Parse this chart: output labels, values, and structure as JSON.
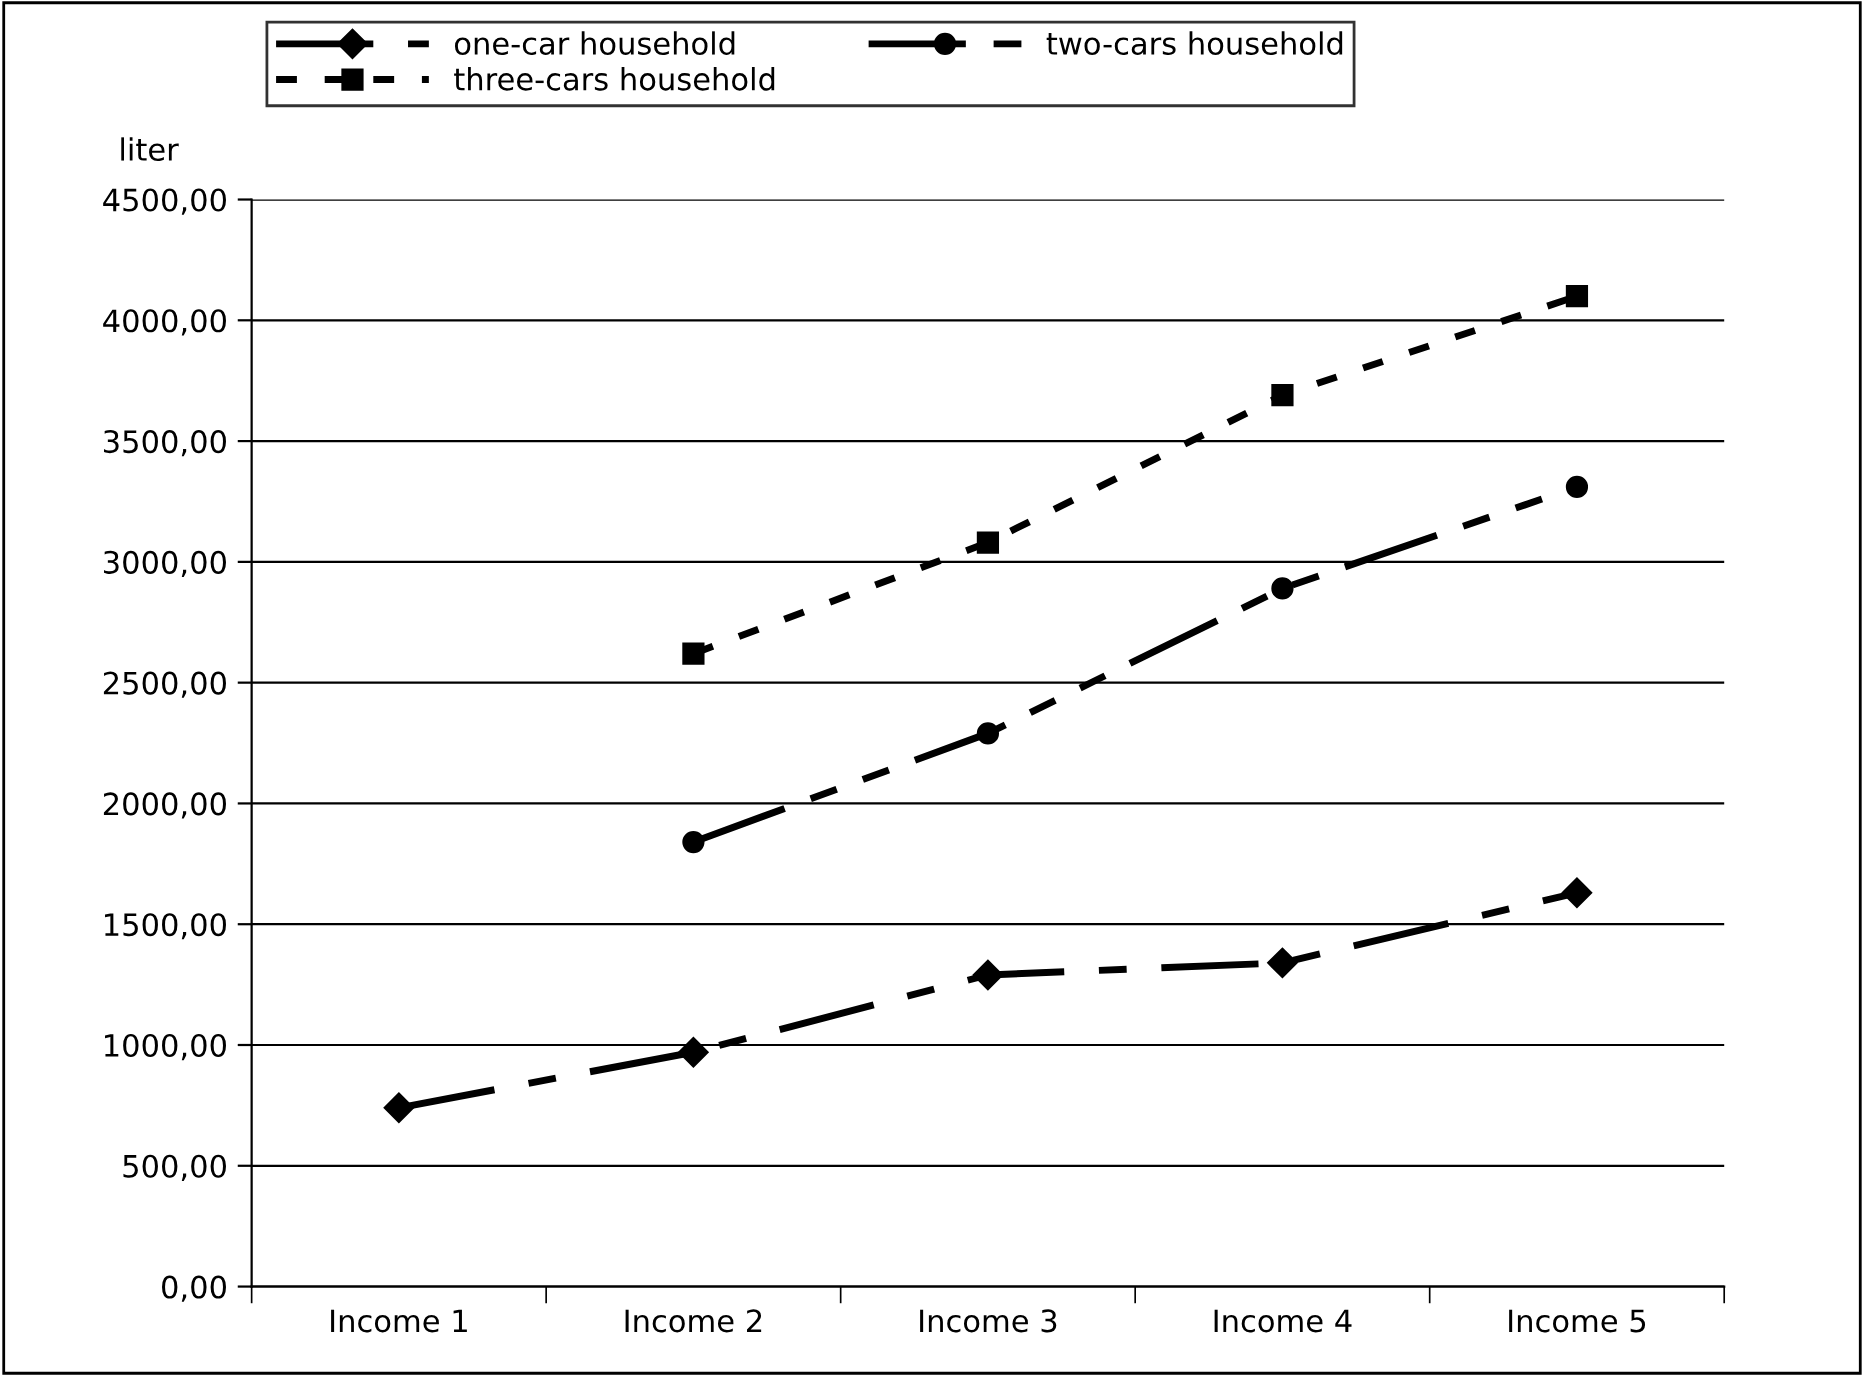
{
  "chart_data": {
    "type": "line",
    "ylabel": "liter",
    "categories": [
      "Income 1",
      "Income 2",
      "Income 3",
      "Income 4",
      "Income 5"
    ],
    "series": [
      {
        "name": "one-car household",
        "color": "#000000",
        "marker": "diamond",
        "line_style": "dashdot",
        "values": [
          740,
          970,
          1290,
          1340,
          1630
        ]
      },
      {
        "name": "two-cars household",
        "color": "#000000",
        "marker": "circle",
        "line_style": "dashed",
        "values": [
          null,
          1840,
          2290,
          2890,
          3310
        ]
      },
      {
        "name": "three-cars household",
        "color": "#000000",
        "marker": "square",
        "line_style": "dotted",
        "values": [
          null,
          2620,
          3080,
          3690,
          4100
        ]
      }
    ],
    "ylim": [
      0,
      4500
    ],
    "yticks": [
      {
        "value": 0,
        "label": "0,00"
      },
      {
        "value": 500,
        "label": "500,00"
      },
      {
        "value": 1000,
        "label": "1000,00"
      },
      {
        "value": 1500,
        "label": "1500,00"
      },
      {
        "value": 2000,
        "label": "2000,00"
      },
      {
        "value": 2500,
        "label": "2500,00"
      },
      {
        "value": 3000,
        "label": "3000,00"
      },
      {
        "value": 3500,
        "label": "3500,00"
      },
      {
        "value": 4000,
        "label": "4000,00"
      },
      {
        "value": 4500,
        "label": "4500,00"
      }
    ],
    "grid": "y",
    "legend": "top left"
  }
}
